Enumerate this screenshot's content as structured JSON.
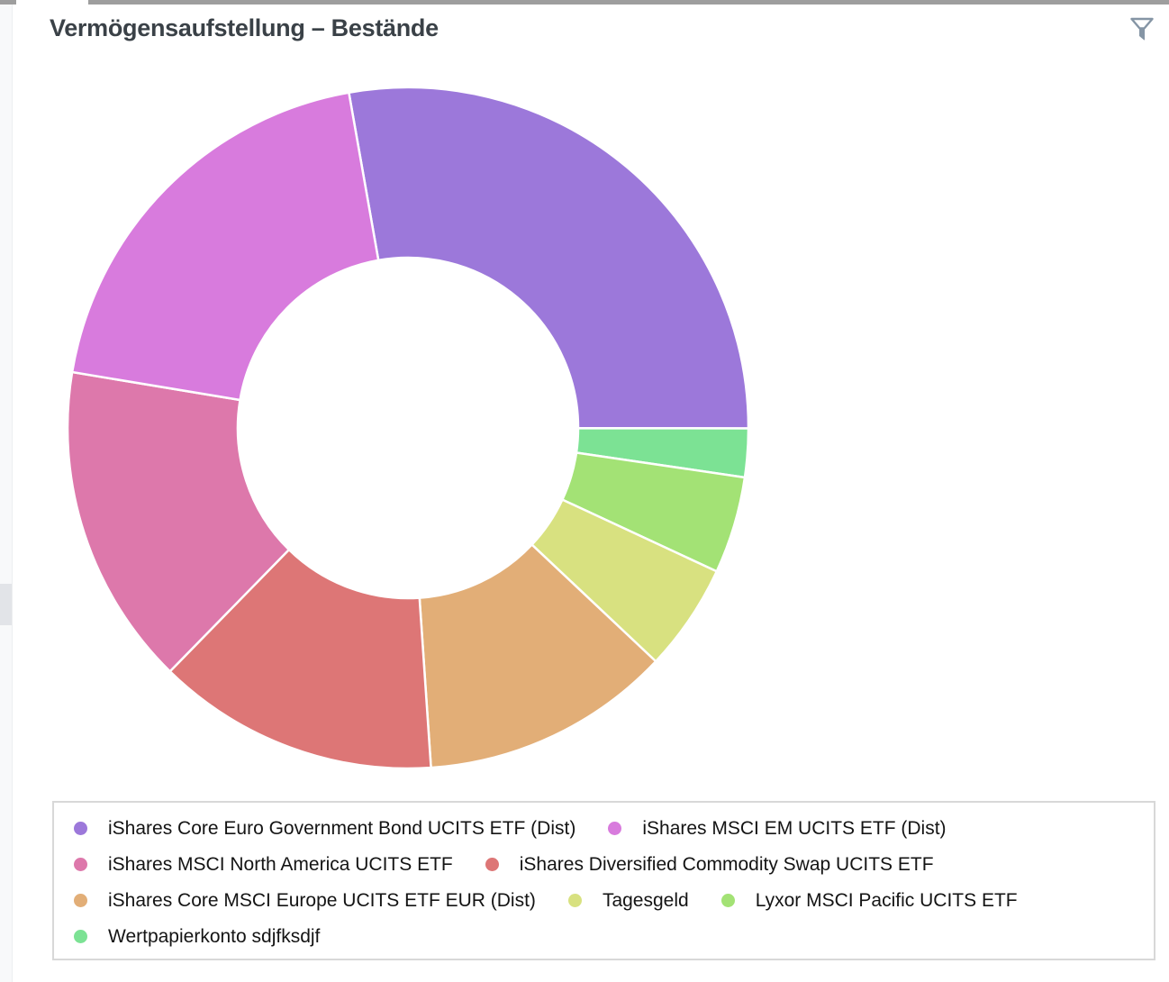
{
  "header": {
    "title": "Vermögensaufstellung – Bestände"
  },
  "toolbar": {
    "filter_icon": "funnel-filter-icon",
    "filter_icon_color": "#8595a5"
  },
  "frame": {
    "top_bar_color": "#9e9e9e",
    "left_rail_color": "#f8f9fa",
    "rail_thumb_color": "#e2e4e8",
    "legend_border_color": "#d8d8d8",
    "title_color": "#3a4147"
  },
  "chart_data": {
    "type": "pie",
    "subtype": "donut",
    "title": "Vermögensaufstellung – Bestände",
    "unit": "percent-of-total",
    "start_angle_deg": -10,
    "inner_radius_ratio": 0.5,
    "legend_position": "bottom",
    "grid": false,
    "segments": [
      {
        "id": "euro-gov-bond",
        "label": "iShares Core Euro Government Bond UCITS ETF (Dist)",
        "value": 27.8,
        "color": "#9c78da"
      },
      {
        "id": "wertpapierkonto",
        "label": "Wertpapierkonto sdjfksdjf",
        "value": 2.3,
        "color": "#7ce294"
      },
      {
        "id": "lyxor-pacific",
        "label": "Lyxor MSCI Pacific UCITS ETF",
        "value": 4.6,
        "color": "#a3e275"
      },
      {
        "id": "tagesgeld",
        "label": "Tagesgeld",
        "value": 5.1,
        "color": "#d8e180"
      },
      {
        "id": "msci-europe",
        "label": "iShares Core MSCI Europe UCITS ETF EUR (Dist)",
        "value": 11.9,
        "color": "#e2ae77"
      },
      {
        "id": "commodity-swap",
        "label": "iShares Diversified Commodity Swap UCITS ETF",
        "value": 13.4,
        "color": "#dd7676"
      },
      {
        "id": "north-america",
        "label": "iShares MSCI North America UCITS ETF",
        "value": 15.3,
        "color": "#dd78ab"
      },
      {
        "id": "msci-em",
        "label": "iShares MSCI EM UCITS ETF (Dist)",
        "value": 19.6,
        "color": "#d87bdd"
      }
    ],
    "legend_order": [
      0,
      7,
      6,
      5,
      4,
      3,
      2,
      1
    ]
  }
}
